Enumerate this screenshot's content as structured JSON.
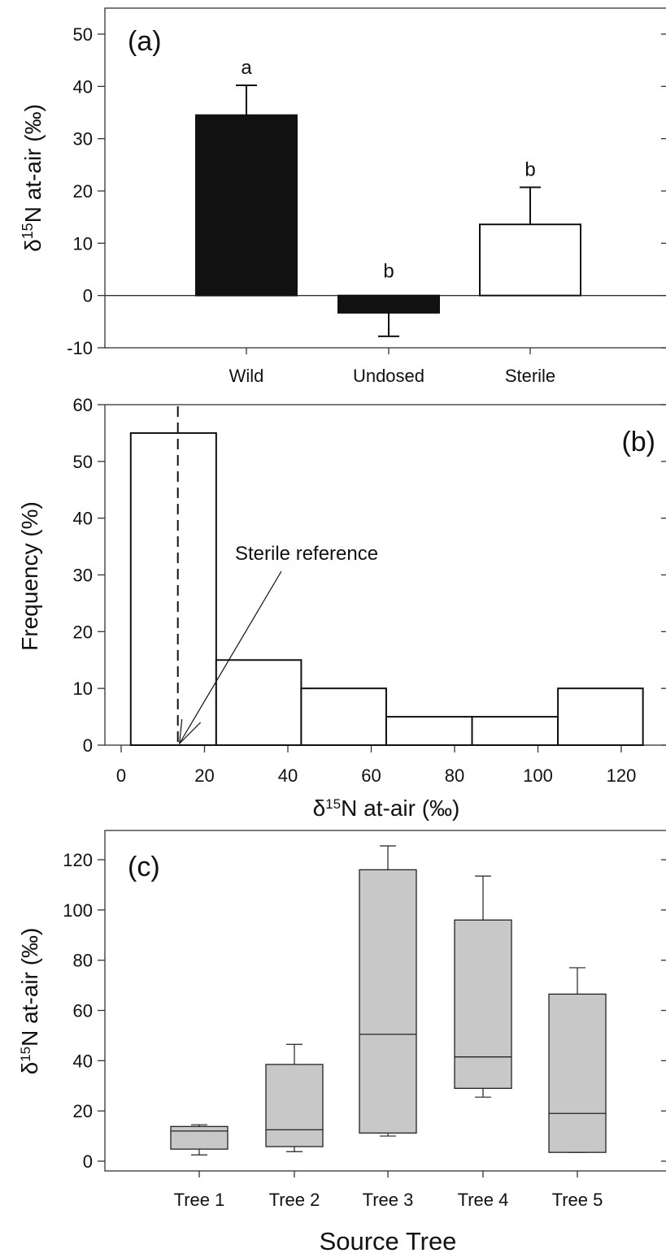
{
  "chart_data": [
    {
      "panel": "(a)",
      "type": "bar",
      "categories": [
        "Wild",
        "Undosed",
        "Sterile"
      ],
      "values": [
        34.5,
        -3.3,
        13.6
      ],
      "error_upper": [
        40.2,
        -7.8,
        20.7
      ],
      "fills": [
        "#111111",
        "#111111",
        "#ffffff"
      ],
      "significance": [
        "a",
        "b",
        "b"
      ],
      "ylabel_main": "δ",
      "ylabel_sup": "15",
      "ylabel_rest": "N at-air (‰)",
      "ylim": [
        -10,
        55
      ],
      "yticks": [
        "50",
        "40",
        "30",
        "20",
        "10",
        "0",
        "-10"
      ],
      "ytick_values": [
        50,
        40,
        30,
        20,
        10,
        0,
        -10
      ]
    },
    {
      "panel": "(b)",
      "type": "bar",
      "subtype": "histogram",
      "bins": [
        {
          "x0": 2.3,
          "x1": 22.8,
          "value": 55
        },
        {
          "x0": 22.8,
          "x1": 43.2,
          "value": 15
        },
        {
          "x0": 43.2,
          "x1": 63.6,
          "value": 10
        },
        {
          "x0": 63.6,
          "x1": 84.2,
          "value": 5
        },
        {
          "x0": 84.2,
          "x1": 104.8,
          "value": 5
        },
        {
          "x0": 104.8,
          "x1": 125.2,
          "value": 10
        }
      ],
      "reference_x": 13.6,
      "annotation": "Sterile reference",
      "ylabel": "Frequency (%)",
      "xlabel_main": "δ",
      "xlabel_sup": "15",
      "xlabel_rest": "N at-air (‰)",
      "xlim": [
        -3,
        129
      ],
      "ylim": [
        0,
        60
      ],
      "xticks": [
        "0",
        "20",
        "40",
        "60",
        "80",
        "100",
        "120"
      ],
      "xtick_values": [
        0,
        20,
        40,
        60,
        80,
        100,
        120
      ],
      "yticks": [
        "60",
        "50",
        "40",
        "30",
        "20",
        "10",
        "0"
      ],
      "ytick_values": [
        60,
        50,
        40,
        30,
        20,
        10,
        0
      ]
    },
    {
      "panel": "(c)",
      "type": "box",
      "categories": [
        "Tree 1",
        "Tree 2",
        "Tree 3",
        "Tree 4",
        "Tree 5"
      ],
      "boxes": [
        {
          "whisker_low": 2.5,
          "q1": 4.8,
          "median": 12,
          "q3": 13.8,
          "whisker_high": 14.5
        },
        {
          "whisker_low": 3.8,
          "q1": 5.8,
          "median": 12.5,
          "q3": 38.5,
          "whisker_high": 46.5
        },
        {
          "whisker_low": 10,
          "q1": 11.2,
          "median": 50.5,
          "q3": 116,
          "whisker_high": 125.5
        },
        {
          "whisker_low": 25.5,
          "q1": 29,
          "median": 41.5,
          "q3": 96,
          "whisker_high": 113.5
        },
        {
          "whisker_low": 3.5,
          "q1": 3.5,
          "median": 19,
          "q3": 66.5,
          "whisker_high": 77
        }
      ],
      "ylabel_main": "δ",
      "ylabel_sup": "15",
      "ylabel_rest": "N at-air (‰)",
      "xlabel": "Source Tree",
      "ylim": [
        -4,
        132
      ],
      "yticks": [
        "120",
        "100",
        "80",
        "60",
        "40",
        "20",
        "0"
      ],
      "ytick_values": [
        120,
        100,
        80,
        60,
        40,
        20,
        0
      ]
    }
  ]
}
